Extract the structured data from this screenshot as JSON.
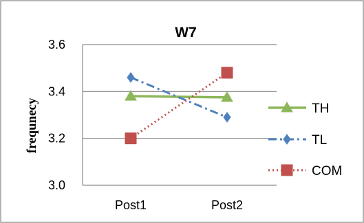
{
  "chart_data": {
    "type": "line",
    "title": "W7",
    "xlabel": "",
    "ylabel": "frequnecy",
    "categories": [
      "Post1",
      "Post2"
    ],
    "ylim": [
      3.0,
      3.6
    ],
    "yticks": [
      3.0,
      3.2,
      3.4,
      3.6
    ],
    "ytick_labels": [
      "3.0",
      "3.2",
      "3.4",
      "3.6"
    ],
    "grid": true,
    "legend_position": "right",
    "series": [
      {
        "name": "TH",
        "values": [
          3.38,
          3.375
        ],
        "color": "#8DB85A",
        "line_style": "solid",
        "marker": "triangle"
      },
      {
        "name": "TL",
        "values": [
          3.46,
          3.29
        ],
        "color": "#4F81BD",
        "line_style": "dash-dot",
        "marker": "diamond"
      },
      {
        "name": "COM",
        "values": [
          3.2,
          3.48
        ],
        "color": "#C0504D",
        "line_style": "dotted",
        "marker": "square"
      }
    ]
  }
}
